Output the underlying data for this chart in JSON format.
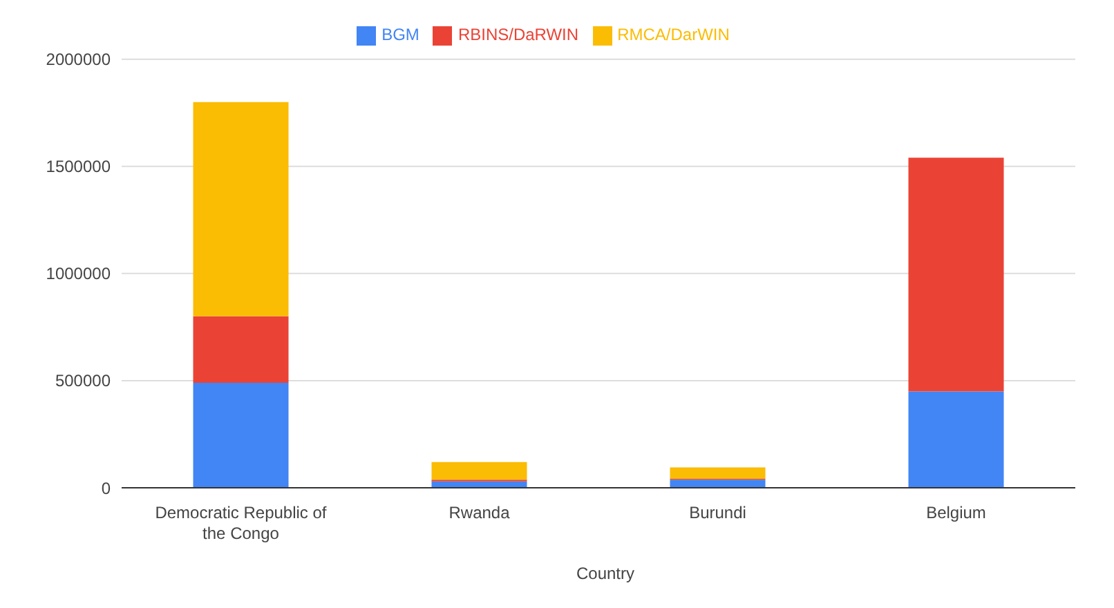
{
  "chart_data": {
    "type": "bar",
    "stacked": true,
    "xlabel": "Country",
    "categories": [
      "Democratic Republic of the Congo",
      "Rwanda",
      "Burundi",
      "Belgium"
    ],
    "series": [
      {
        "name": "BGM",
        "color": "#4285f4",
        "values": [
          490000,
          30000,
          38000,
          450000
        ]
      },
      {
        "name": "RBINS/DaRWIN",
        "color": "#ea4335",
        "values": [
          310000,
          8000,
          4000,
          1090000
        ]
      },
      {
        "name": "RMCA/DarWIN",
        "color": "#fbbc04",
        "values": [
          1000000,
          82000,
          53000,
          0
        ]
      }
    ],
    "ylim": [
      0,
      2000000
    ],
    "yticks": [
      0,
      500000,
      1000000,
      1500000,
      2000000
    ],
    "grid": "y",
    "legend": "top"
  }
}
